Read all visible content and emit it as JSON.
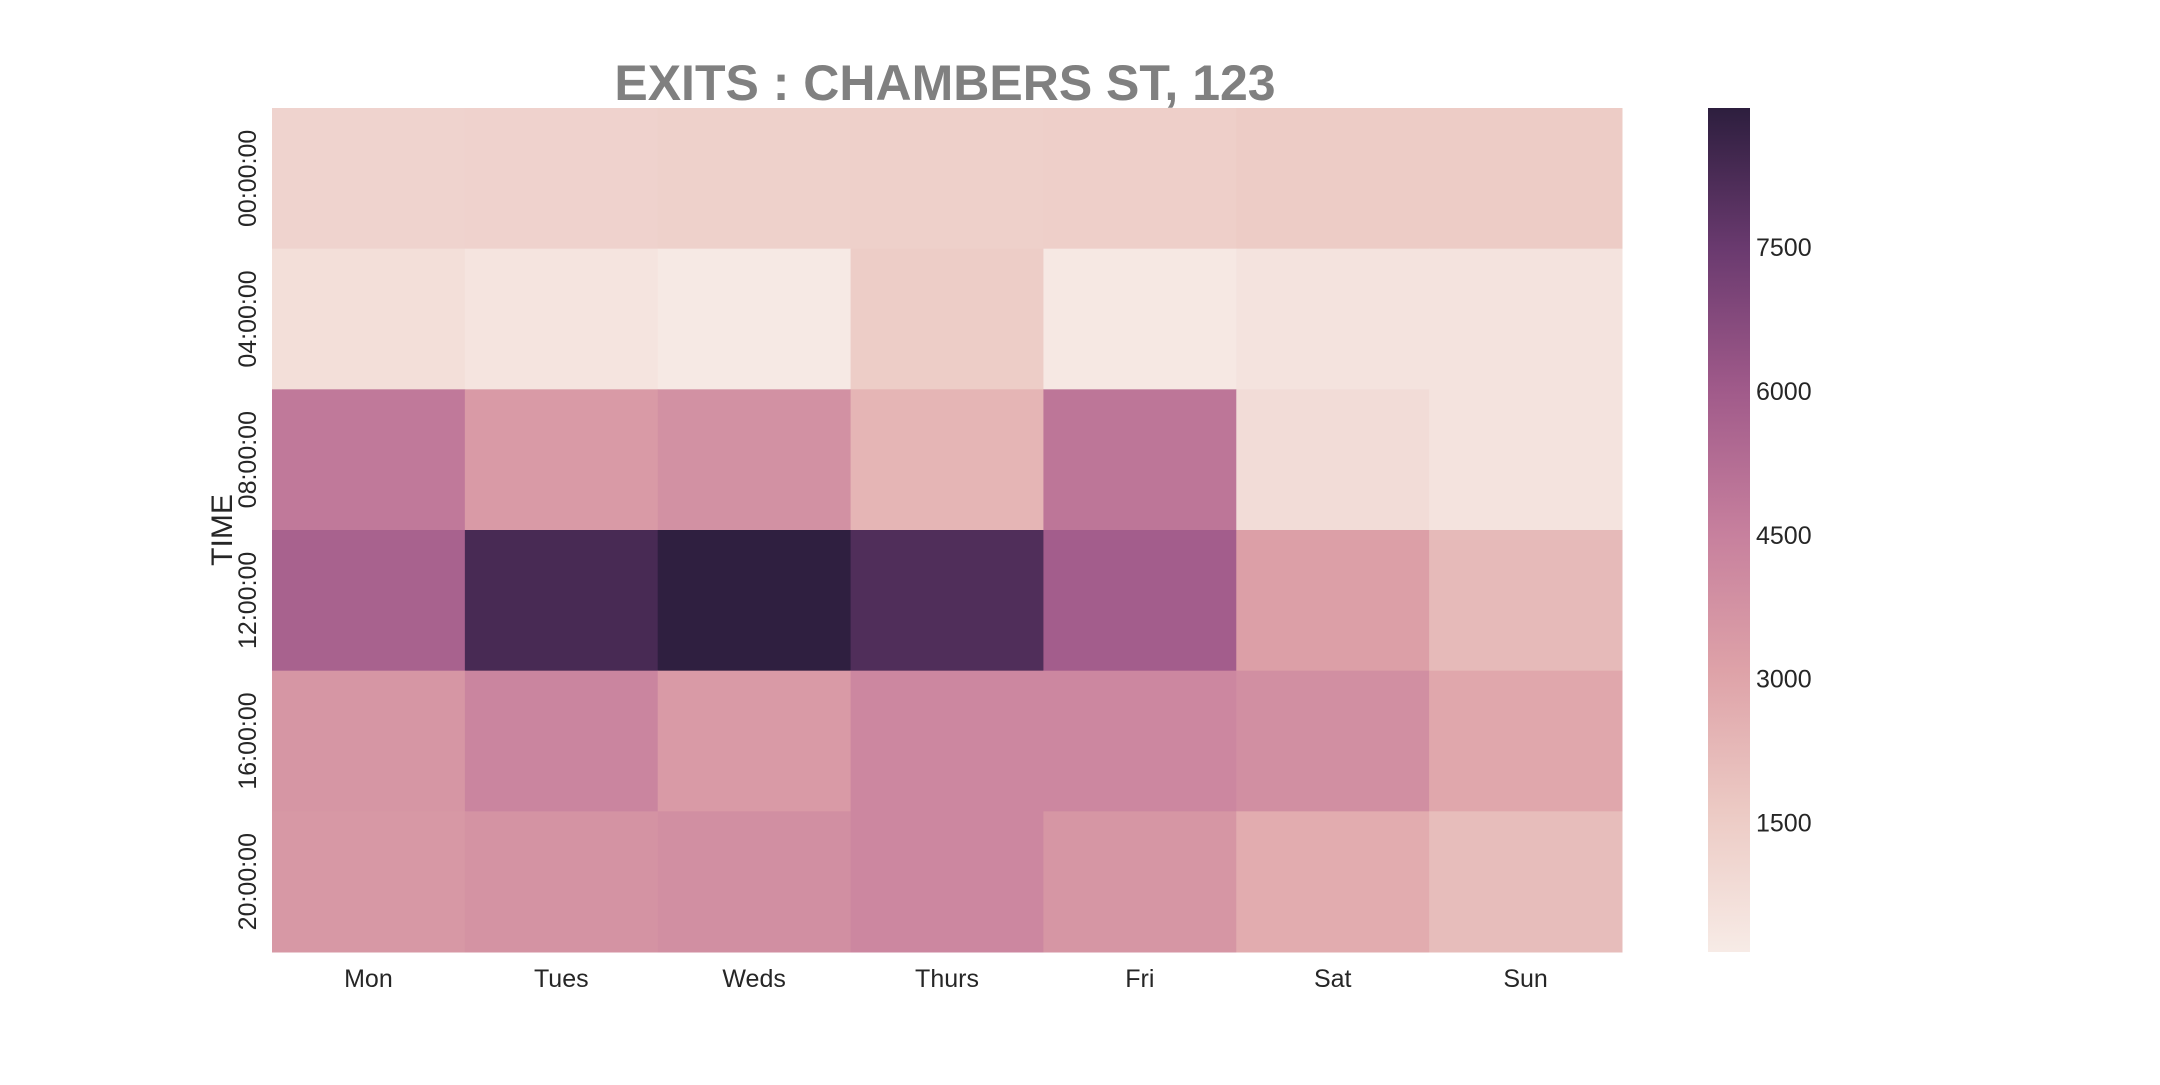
{
  "chart_data": {
    "type": "heatmap",
    "title": "EXITS : CHAMBERS ST, 123",
    "xlabel": "",
    "ylabel": "TIME",
    "x": [
      "Mon",
      "Tues",
      "Weds",
      "Thurs",
      "Fri",
      "Sat",
      "Sun"
    ],
    "y": [
      "00:00:00",
      "04:00:00",
      "08:00:00",
      "12:00:00",
      "16:00:00",
      "20:00:00"
    ],
    "values": [
      [
        1200,
        1250,
        1300,
        1350,
        1400,
        1550,
        1550
      ],
      [
        700,
        450,
        250,
        1500,
        300,
        500,
        500
      ],
      [
        4800,
        3400,
        3800,
        2400,
        4900,
        800,
        500
      ],
      [
        5700,
        8300,
        8900,
        8100,
        5900,
        3200,
        2200
      ],
      [
        3600,
        4300,
        3400,
        4200,
        4200,
        3900,
        2900
      ],
      [
        3500,
        3700,
        3900,
        4200,
        3600,
        2700,
        2100
      ]
    ],
    "colorbar": {
      "min": 150,
      "max": 8950,
      "ticks": [
        1500,
        3000,
        4500,
        6000,
        7500
      ],
      "tick_labels": [
        "1500",
        "3000",
        "4500",
        "6000",
        "7500"
      ]
    },
    "colormap": [
      "#f7ebe6",
      "#eccac4",
      "#dea2a8",
      "#c67f9d",
      "#a05a8a",
      "#6a3a6f",
      "#2d1e3e"
    ],
    "grid": false,
    "legend": "none"
  }
}
